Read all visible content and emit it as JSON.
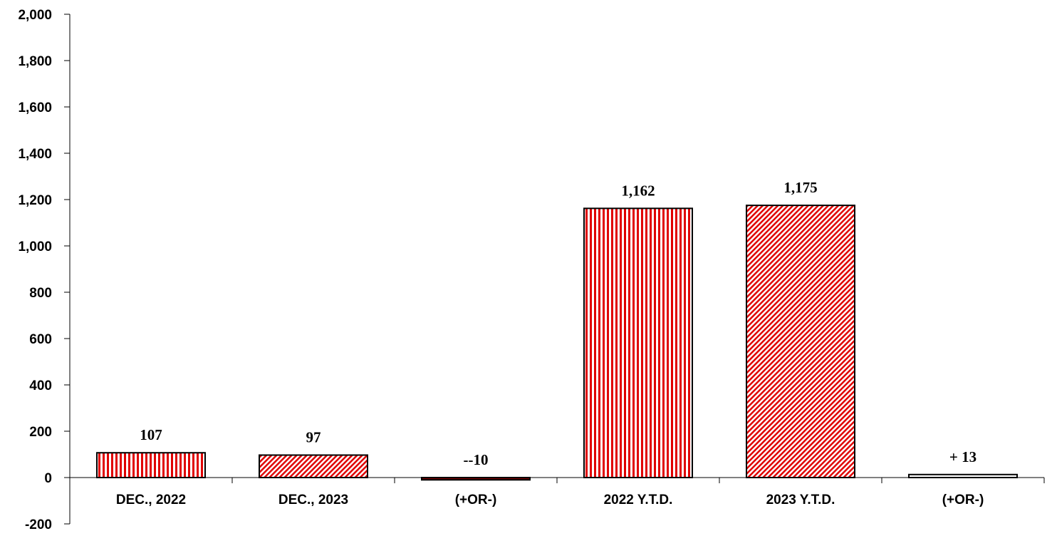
{
  "chart_data": {
    "type": "bar",
    "categories": [
      "DEC., 2022",
      "DEC., 2023",
      "(+OR-)",
      "2022 Y.T.D.",
      "2023 Y.T.D.",
      "(+OR-)"
    ],
    "values": [
      107,
      97,
      -10,
      1162,
      1175,
      13
    ],
    "data_labels": [
      "107",
      "97",
      "--10",
      "1,162",
      "1,175",
      "+ 13"
    ],
    "patterns": [
      "vertical",
      "diagonal",
      "solid-dark",
      "vertical",
      "diagonal",
      "white"
    ],
    "ylim": [
      -200,
      2000
    ],
    "yticks": [
      -200,
      0,
      200,
      400,
      600,
      800,
      1000,
      1200,
      1400,
      1600,
      1800,
      2000
    ],
    "ytick_labels": [
      "-200",
      "0",
      "200",
      "400",
      "600",
      "800",
      "1,000",
      "1,200",
      "1,400",
      "1,600",
      "1,800",
      "2,000"
    ],
    "title": "",
    "xlabel": "",
    "ylabel": "",
    "grid": false,
    "legend": "none",
    "colors": {
      "bar_red": "#e00000",
      "bar_dark": "#7a0000",
      "background": "#ffffff",
      "axis": "#000000"
    }
  }
}
